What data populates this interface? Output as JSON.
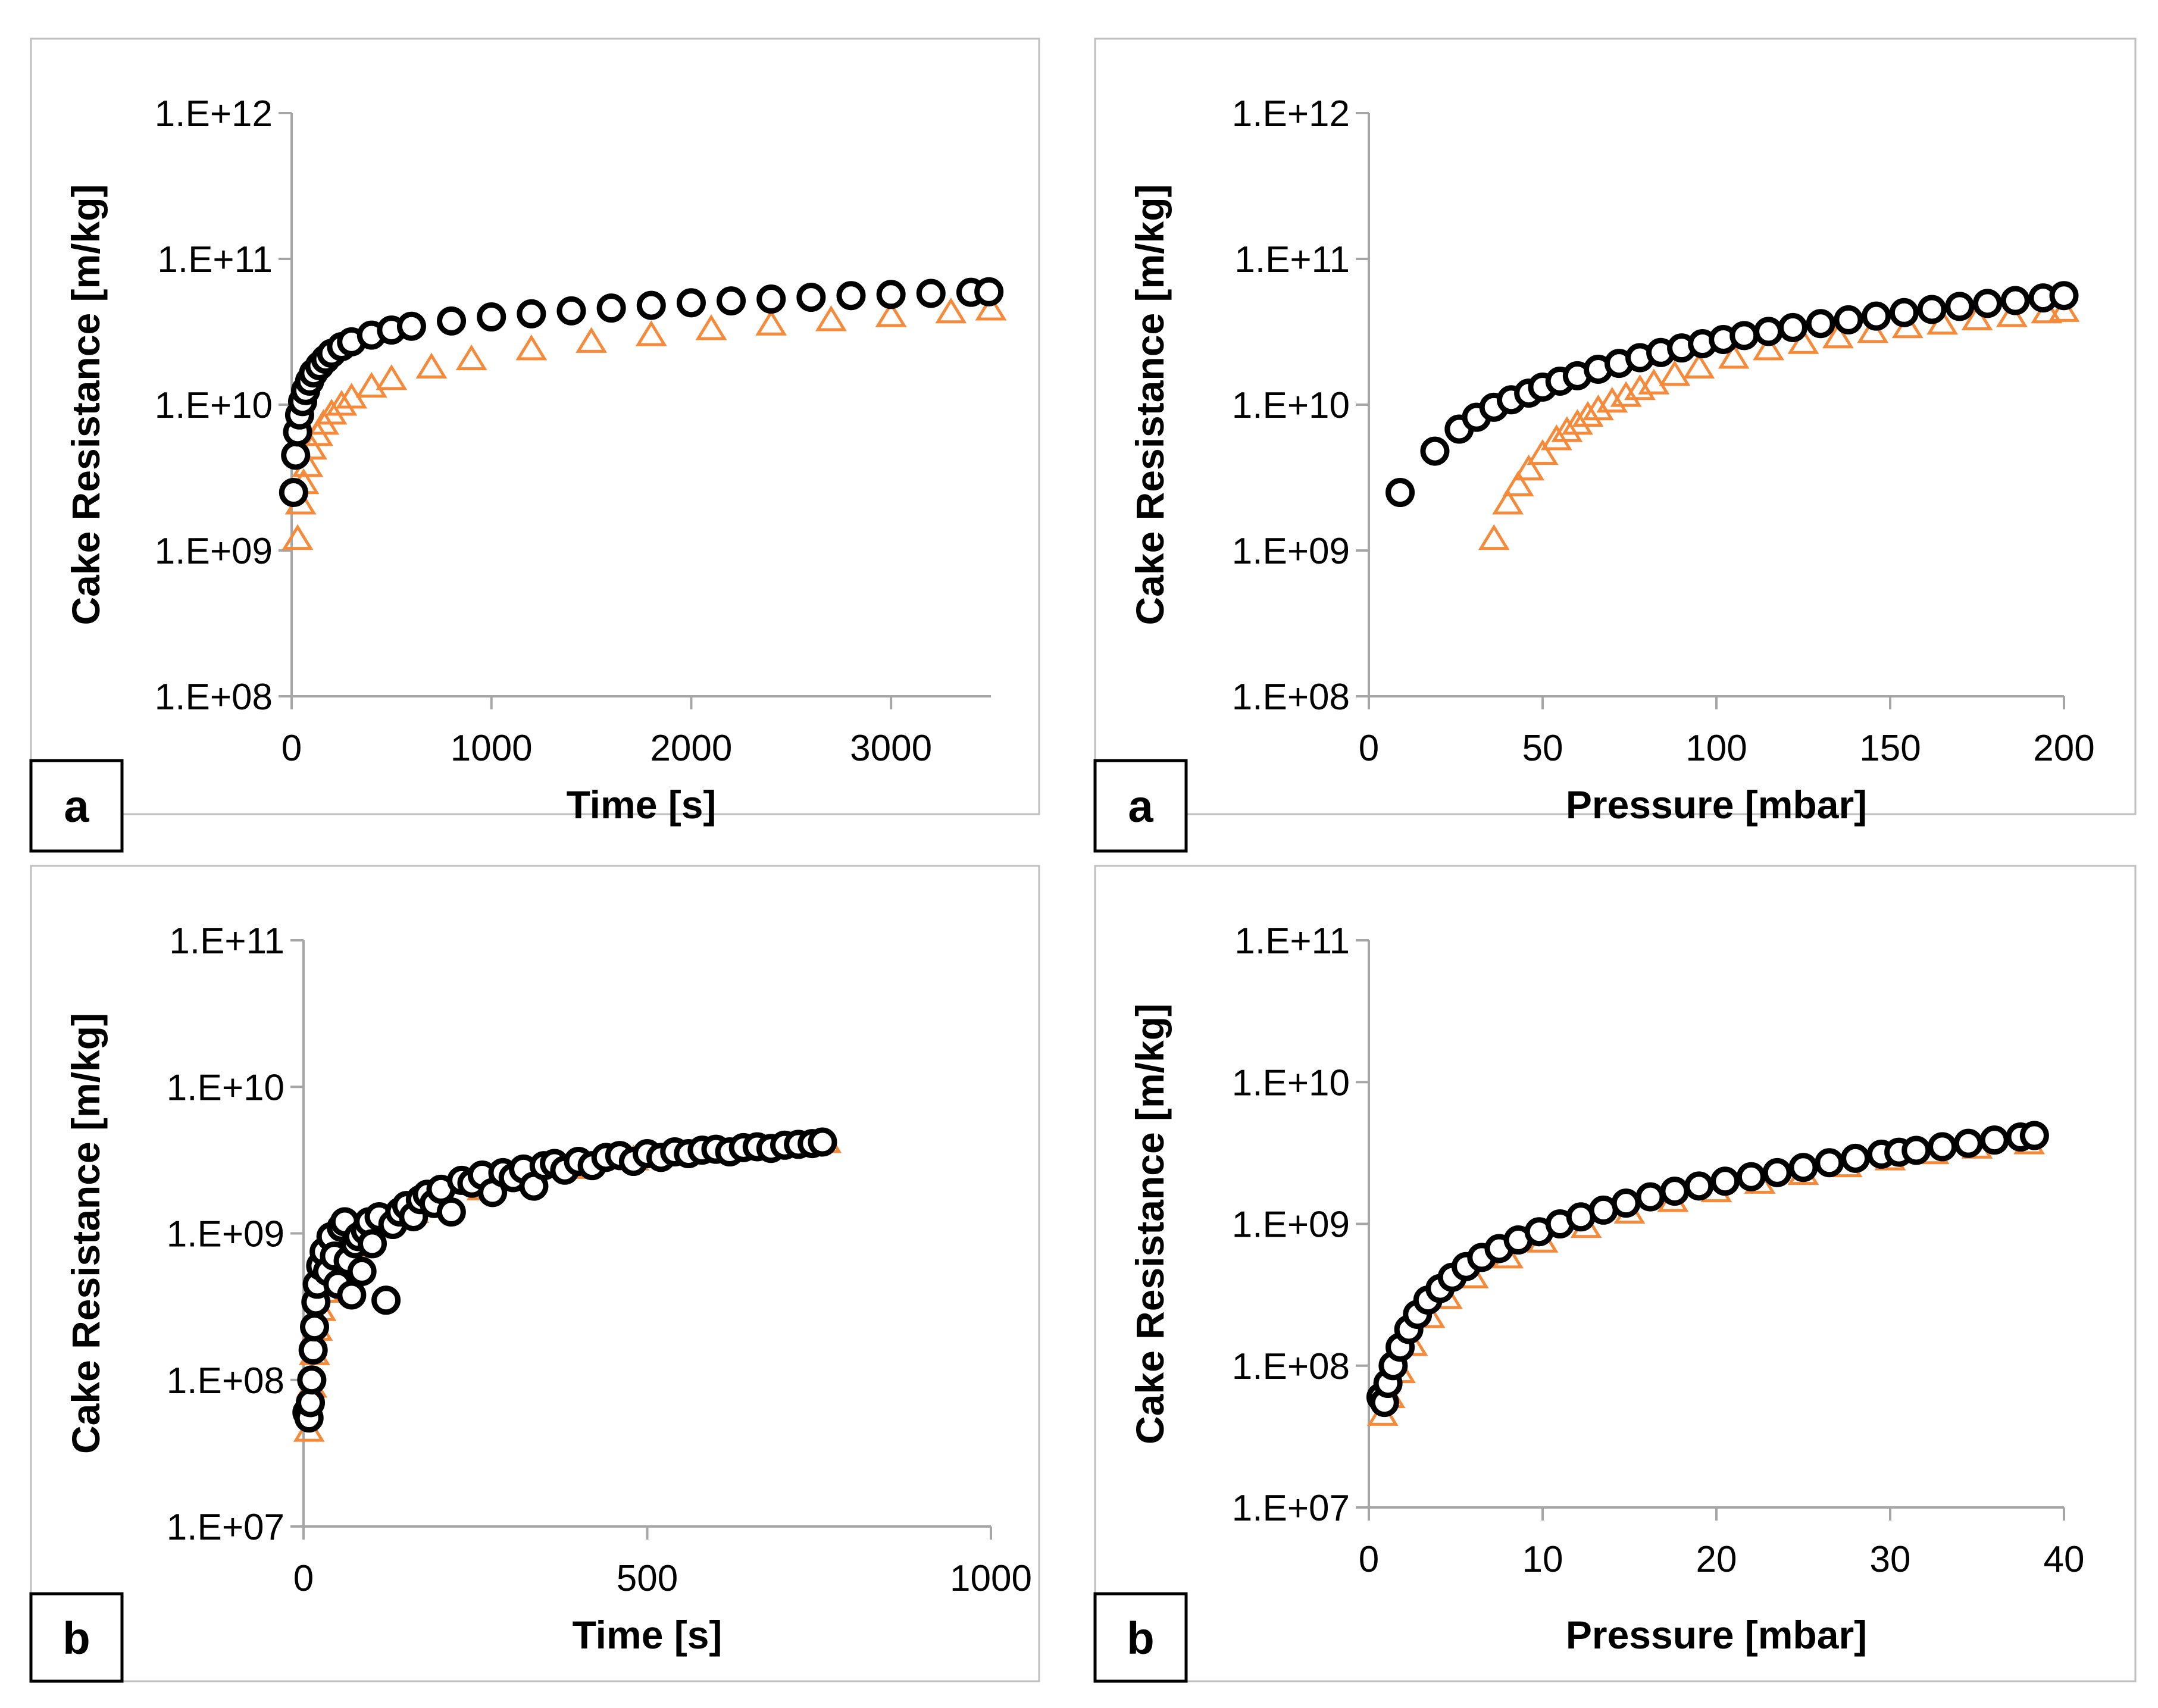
{
  "colors": {
    "series_a": "#f58a3a",
    "series_b": "#000000",
    "marker_fill": "#ffffff",
    "frame": "#bfbfbf",
    "axis": "#a6a6a6"
  },
  "chart_data": [
    {
      "type": "scatter",
      "panel_label": "a",
      "xlabel": "Time [s]",
      "ylabel": "Cake Resistance [m/kg]",
      "xlim": [
        0,
        3500
      ],
      "x_ticks": [
        0,
        1000,
        2000,
        3000
      ],
      "x_tick_labels": [
        "0",
        "1000",
        "2000",
        "3000"
      ],
      "yscale": "log",
      "ylim": [
        100000000.0,
        1000000000000.0
      ],
      "y_tick_labels": [
        "1.E+08",
        "1.E+09",
        "1.E+10",
        "1.E+11",
        "1.E+12"
      ],
      "series": [
        {
          "name": "triangles (orange)",
          "marker": "triangle",
          "x": [
            30,
            45,
            60,
            80,
            100,
            130,
            160,
            200,
            250,
            300,
            400,
            500,
            700,
            900,
            1200,
            1500,
            1800,
            2100,
            2400,
            2700,
            3000,
            3300,
            3500
          ],
          "y": [
            1200000000.0,
            2100000000.0,
            2900000000.0,
            3800000000.0,
            5000000000.0,
            6200000000.0,
            7400000000.0,
            8700000000.0,
            10000000000.0,
            11200000000.0,
            13300000000.0,
            15000000000.0,
            18000000000.0,
            20500000000.0,
            24000000000.0,
            27000000000.0,
            30000000000.0,
            33000000000.0,
            35500000000.0,
            38000000000.0,
            40500000000.0,
            43000000000.0,
            45000000000.0
          ]
        },
        {
          "name": "circles (black outline)",
          "marker": "circle",
          "x": [
            10,
            20,
            30,
            40,
            55,
            70,
            90,
            110,
            140,
            170,
            200,
            250,
            300,
            400,
            500,
            600,
            800,
            1000,
            1200,
            1400,
            1600,
            1800,
            2000,
            2200,
            2400,
            2600,
            2800,
            3000,
            3200,
            3400,
            3490
          ],
          "y": [
            2500000000.0,
            4500000000.0,
            6500000000.0,
            8500000000.0,
            10500000000.0,
            12500000000.0,
            14500000000.0,
            16500000000.0,
            18500000000.0,
            20500000000.0,
            22500000000.0,
            25000000000.0,
            27000000000.0,
            30000000000.0,
            32500000000.0,
            34500000000.0,
            37500000000.0,
            40000000000.0,
            42000000000.0,
            44000000000.0,
            46000000000.0,
            48000000000.0,
            50000000000.0,
            51500000000.0,
            53000000000.0,
            54500000000.0,
            56000000000.0,
            57000000000.0,
            58000000000.0,
            59000000000.0,
            59500000000.0
          ]
        }
      ]
    },
    {
      "type": "scatter",
      "panel_label": "a",
      "xlabel": "Pressure [mbar]",
      "ylabel": "Cake Resistance [m/kg]",
      "xlim": [
        0,
        200
      ],
      "x_ticks": [
        0,
        50,
        100,
        150,
        200
      ],
      "x_tick_labels": [
        "0",
        "50",
        "100",
        "150",
        "200"
      ],
      "yscale": "log",
      "ylim": [
        100000000.0,
        1000000000000.0
      ],
      "y_tick_labels": [
        "1.E+08",
        "1.E+09",
        "1.E+10",
        "1.E+11",
        "1.E+12"
      ],
      "series": [
        {
          "name": "triangles (orange)",
          "marker": "triangle",
          "x": [
            36,
            40,
            43,
            46,
            50,
            54,
            57,
            60,
            63,
            66,
            70,
            74,
            78,
            82,
            88,
            95,
            105,
            115,
            125,
            135,
            145,
            155,
            165,
            175,
            185,
            195,
            200
          ],
          "y": [
            1200000000.0,
            2100000000.0,
            2800000000.0,
            3600000000.0,
            4600000000.0,
            5800000000.0,
            6600000000.0,
            7400000000.0,
            8400000000.0,
            9300000000.0,
            10500000000.0,
            11500000000.0,
            12800000000.0,
            14000000000.0,
            16000000000.0,
            18000000000.0,
            21000000000.0,
            24000000000.0,
            26500000000.0,
            29000000000.0,
            31500000000.0,
            34000000000.0,
            36000000000.0,
            38500000000.0,
            40500000000.0,
            43000000000.0,
            44000000000.0
          ]
        },
        {
          "name": "circles (black outline)",
          "marker": "circle",
          "x": [
            9,
            19,
            26,
            31,
            36,
            41,
            46,
            50,
            55,
            60,
            66,
            72,
            78,
            84,
            90,
            96,
            102,
            108,
            115,
            122,
            130,
            138,
            146,
            154,
            162,
            170,
            178,
            186,
            194,
            200
          ],
          "y": [
            2500000000.0,
            4800000000.0,
            6800000000.0,
            8200000000.0,
            9600000000.0,
            10800000000.0,
            12000000000.0,
            13200000000.0,
            14500000000.0,
            15800000000.0,
            17500000000.0,
            19200000000.0,
            21000000000.0,
            22800000000.0,
            24500000000.0,
            26200000000.0,
            28000000000.0,
            29800000000.0,
            31800000000.0,
            33800000000.0,
            36000000000.0,
            38200000000.0,
            40500000000.0,
            42800000000.0,
            45000000000.0,
            47200000000.0,
            49500000000.0,
            51800000000.0,
            54000000000.0,
            56000000000.0
          ]
        }
      ]
    },
    {
      "type": "scatter",
      "panel_label": "b",
      "xlabel": "Time [s]",
      "ylabel": "Cake Resistance [m/kg]",
      "xlim": [
        0,
        1000
      ],
      "x_ticks": [
        0,
        500,
        1000
      ],
      "x_tick_labels": [
        "0",
        "500",
        "1000"
      ],
      "yscale": "log",
      "ylim": [
        10000000.0,
        100000000000.0
      ],
      "y_tick_labels": [
        "1.E+07",
        "1.E+08",
        "1.E+09",
        "1.E+10",
        "1.E+11"
      ],
      "series": [
        {
          "name": "triangles (orange)",
          "marker": "triangle",
          "x": [
            8,
            12,
            16,
            20,
            25,
            30,
            40,
            55,
            70,
            90,
            120,
            160,
            200,
            260,
            320,
            400,
            480,
            560,
            640,
            700,
            760
          ],
          "y": [
            45000000.0,
            90000000.0,
            150000000.0,
            220000000.0,
            300000000.0,
            400000000.0,
            520000000.0,
            650000000.0,
            800000000.0,
            950000000.0,
            1150000000.0,
            1400000000.0,
            1700000000.0,
            2000000000.0,
            2400000000.0,
            2800000000.0,
            3200000000.0,
            3500000000.0,
            3800000000.0,
            4000000000.0,
            4200000000.0
          ]
        },
        {
          "name": "circles (black outline)",
          "marker": "circle",
          "x": [
            5,
            8,
            10,
            12,
            14,
            16,
            18,
            20,
            25,
            30,
            35,
            40,
            45,
            50,
            55,
            60,
            65,
            70,
            75,
            80,
            85,
            90,
            95,
            100,
            110,
            120,
            130,
            140,
            150,
            160,
            170,
            180,
            190,
            200,
            215,
            230,
            245,
            260,
            275,
            290,
            305,
            320,
            335,
            350,
            365,
            380,
            400,
            420,
            440,
            460,
            480,
            500,
            520,
            540,
            560,
            580,
            600,
            620,
            640,
            660,
            680,
            700,
            720,
            740,
            755
          ],
          "y": [
            60000000.0,
            55000000.0,
            70000000.0,
            100000000.0,
            160000000.0,
            230000000.0,
            340000000.0,
            450000000.0,
            600000000.0,
            750000000.0,
            550000000.0,
            950000000.0,
            700000000.0,
            450000000.0,
            1100000000.0,
            1200000000.0,
            650000000.0,
            380000000.0,
            850000000.0,
            950000000.0,
            550000000.0,
            1050000000.0,
            1200000000.0,
            850000000.0,
            1300000000.0,
            350000000.0,
            1150000000.0,
            1400000000.0,
            1550000000.0,
            1300000000.0,
            1700000000.0,
            1850000000.0,
            1600000000.0,
            2000000000.0,
            1400000000.0,
            2300000000.0,
            2200000000.0,
            2500000000.0,
            1900000000.0,
            2600000000.0,
            2400000000.0,
            2750000000.0,
            2100000000.0,
            2900000000.0,
            3000000000.0,
            2700000000.0,
            3100000000.0,
            2900000000.0,
            3300000000.0,
            3400000000.0,
            3100000000.0,
            3500000000.0,
            3300000000.0,
            3600000000.0,
            3500000000.0,
            3700000000.0,
            3750000000.0,
            3600000000.0,
            3850000000.0,
            3900000000.0,
            3800000000.0,
            4000000000.0,
            4050000000.0,
            4100000000.0,
            4200000000.0
          ]
        }
      ]
    },
    {
      "type": "scatter",
      "panel_label": "b",
      "xlabel": "Pressure [mbar]",
      "ylabel": "Cake Resistance [m/kg]",
      "xlim": [
        0,
        40
      ],
      "x_ticks": [
        0,
        10,
        20,
        30,
        40
      ],
      "x_tick_labels": [
        "0",
        "10",
        "20",
        "30",
        "40"
      ],
      "yscale": "log",
      "ylim": [
        10000000.0,
        100000000000.0
      ],
      "y_tick_labels": [
        "1.E+07",
        "1.E+08",
        "1.E+09",
        "1.E+10",
        "1.E+11"
      ],
      "series": [
        {
          "name": "triangles (orange)",
          "marker": "triangle",
          "x": [
            0.8,
            1.2,
            1.8,
            2.5,
            3.5,
            4.5,
            6,
            8,
            10,
            12.5,
            15,
            17.5,
            20,
            22.5,
            25,
            27.5,
            30,
            32.5,
            35,
            38
          ],
          "y": [
            45000000.0,
            60000000.0,
            90000000.0,
            140000000.0,
            220000000.0,
            300000000.0,
            420000000.0,
            580000000.0,
            750000000.0,
            950000000.0,
            1200000000.0,
            1450000000.0,
            1700000000.0,
            1950000000.0,
            2250000000.0,
            2550000000.0,
            2850000000.0,
            3150000000.0,
            3450000000.0,
            3700000000.0
          ]
        },
        {
          "name": "circles (black outline)",
          "marker": "circle",
          "x": [
            0.7,
            0.9,
            1.1,
            1.4,
            1.8,
            2.3,
            2.8,
            3.4,
            4.1,
            4.8,
            5.6,
            6.5,
            7.5,
            8.6,
            9.8,
            11,
            12.2,
            13.5,
            14.8,
            16.2,
            17.6,
            19,
            20.5,
            22,
            23.5,
            25,
            26.5,
            28,
            29.5,
            30.5,
            31.5,
            33,
            34.5,
            36,
            37.5,
            38.3
          ],
          "y": [
            60000000.0,
            55000000.0,
            75000000.0,
            100000000.0,
            135000000.0,
            180000000.0,
            230000000.0,
            290000000.0,
            350000000.0,
            420000000.0,
            500000000.0,
            580000000.0,
            670000000.0,
            770000000.0,
            880000000.0,
            1000000000.0,
            1120000000.0,
            1250000000.0,
            1400000000.0,
            1550000000.0,
            1700000000.0,
            1850000000.0,
            2000000000.0,
            2150000000.0,
            2300000000.0,
            2500000000.0,
            2700000000.0,
            2900000000.0,
            3100000000.0,
            3200000000.0,
            3300000000.0,
            3500000000.0,
            3700000000.0,
            3900000000.0,
            4100000000.0,
            4200000000.0
          ]
        }
      ]
    }
  ]
}
